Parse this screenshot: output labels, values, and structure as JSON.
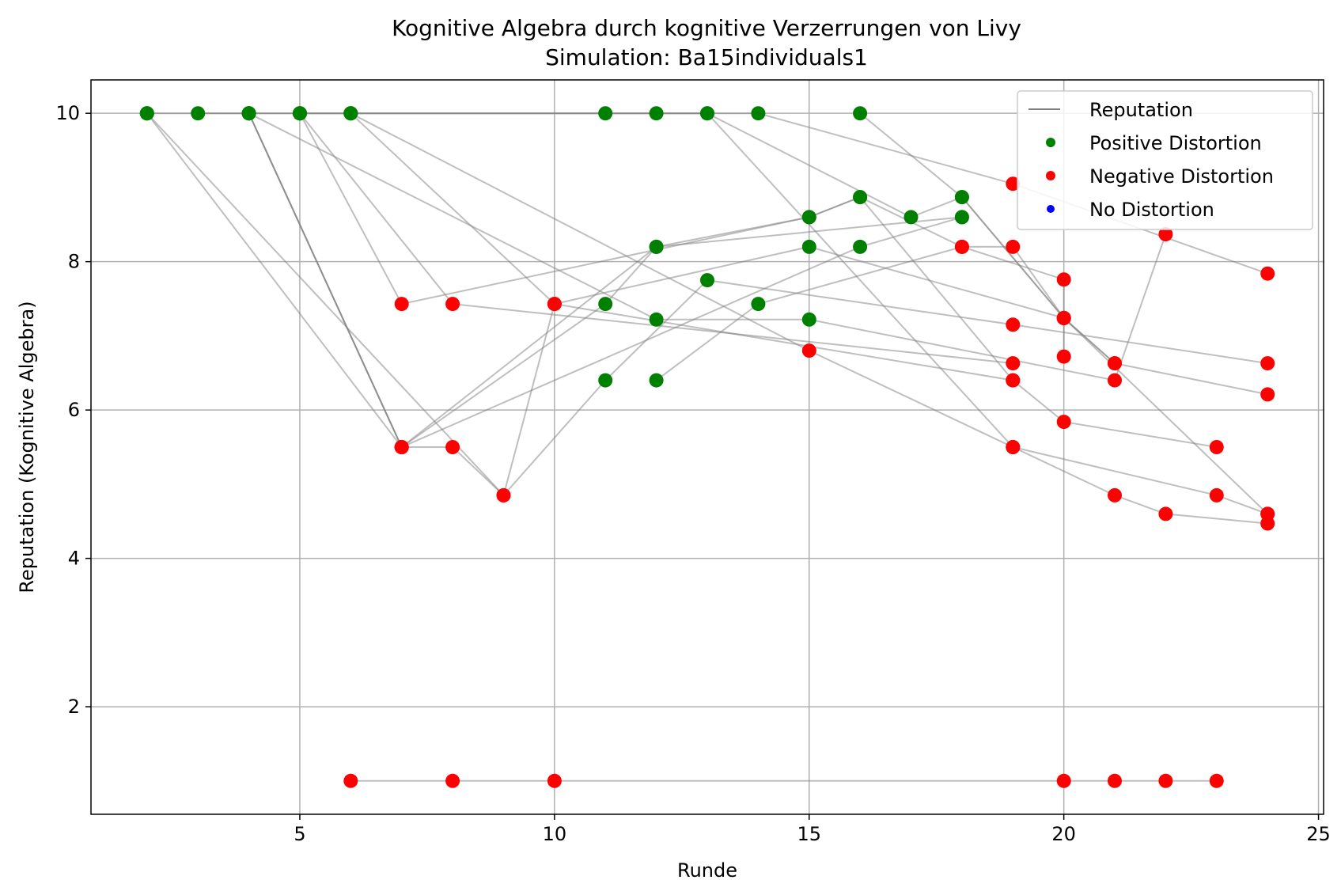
{
  "chart_data": {
    "type": "scatter",
    "title": "Kognitive Algebra durch kognitive Verzerrungen von Livy",
    "subtitle": "Simulation: Ba15individuals1",
    "xlabel": "Runde",
    "ylabel": "Reputation (Kognitive Algebra)",
    "xlim": [
      0.9,
      25.1
    ],
    "ylim": [
      0.55,
      10.45
    ],
    "xticks": [
      5,
      10,
      15,
      20,
      25
    ],
    "yticks": [
      2,
      4,
      6,
      8,
      10
    ],
    "xtick_labels": [
      "5",
      "10",
      "15",
      "20",
      "25"
    ],
    "ytick_labels": [
      "2",
      "4",
      "6",
      "8",
      "10"
    ],
    "grid": true,
    "legend_position": "top-right",
    "legend": [
      {
        "label": "Reputation",
        "marker": "line",
        "color": "#808080"
      },
      {
        "label": "Positive Distortion",
        "marker": "dot",
        "color": "#008000"
      },
      {
        "label": "Negative Distortion",
        "marker": "dot",
        "color": "#ff0000"
      },
      {
        "label": "No Distortion",
        "marker": "dot",
        "color": "#0000ff"
      }
    ],
    "colors": {
      "positive": "#008000",
      "negative": "#ff0000",
      "neutral": "#0000ff",
      "line": "#808080"
    },
    "series": [
      {
        "points": [
          [
            2,
            10,
            "P"
          ],
          [
            7,
            5.5,
            "N"
          ],
          [
            12,
            8.2,
            "P"
          ],
          [
            15,
            8.6,
            "P"
          ],
          [
            16,
            8.87,
            "P"
          ],
          [
            18,
            8.2,
            "N"
          ],
          [
            19,
            8.2,
            "N"
          ],
          [
            20,
            7.24,
            "N"
          ],
          [
            21,
            6.63,
            "N"
          ],
          [
            24,
            6.21,
            "N"
          ]
        ]
      },
      {
        "points": [
          [
            2,
            10,
            "P"
          ],
          [
            9,
            4.85,
            "N"
          ],
          [
            11,
            6.4,
            "P"
          ],
          [
            13,
            7.75,
            "P"
          ],
          [
            19,
            7.15,
            "N"
          ],
          [
            24,
            6.63,
            "N"
          ]
        ]
      },
      {
        "points": [
          [
            2,
            10,
            "P"
          ],
          [
            6,
            10,
            "P"
          ],
          [
            11,
            10,
            "P"
          ],
          [
            12,
            10,
            "P"
          ],
          [
            13,
            10,
            "P"
          ],
          [
            17,
            8.6,
            "P"
          ],
          [
            18,
            8.87,
            "P"
          ],
          [
            20,
            7.24,
            "N"
          ],
          [
            24,
            4.6,
            "N"
          ]
        ]
      },
      {
        "points": [
          [
            3,
            10,
            "P"
          ],
          [
            5,
            10,
            "P"
          ],
          [
            13,
            10,
            "P"
          ],
          [
            19,
            5.5,
            "N"
          ],
          [
            21,
            4.85,
            "N"
          ],
          [
            22,
            4.6,
            "N"
          ],
          [
            24,
            4.47,
            "N"
          ]
        ]
      },
      {
        "points": [
          [
            4,
            10,
            "P"
          ],
          [
            7,
            5.5,
            "N"
          ],
          [
            11,
            7.43,
            "P"
          ],
          [
            12,
            8.2,
            "P"
          ],
          [
            18,
            8.6,
            "P"
          ]
        ]
      },
      {
        "points": [
          [
            4,
            10,
            "P"
          ],
          [
            7,
            5.5,
            "N"
          ],
          [
            16,
            8.2,
            "P"
          ],
          [
            18,
            8.6,
            "P"
          ]
        ]
      },
      {
        "points": [
          [
            4,
            10,
            "P"
          ],
          [
            7,
            5.5,
            "N"
          ],
          [
            8,
            5.5,
            "N"
          ],
          [
            9,
            4.85,
            "N"
          ],
          [
            10,
            7.43,
            "N"
          ],
          [
            15,
            8.2,
            "P"
          ],
          [
            20,
            7.24,
            "N"
          ]
        ]
      },
      {
        "points": [
          [
            5,
            10,
            "P"
          ],
          [
            7,
            7.43,
            "N"
          ],
          [
            15,
            8.6,
            "P"
          ],
          [
            16,
            8.87,
            "P"
          ],
          [
            19,
            6.4,
            "N"
          ]
        ]
      },
      {
        "points": [
          [
            5,
            10,
            "P"
          ],
          [
            8,
            7.43,
            "N"
          ],
          [
            19,
            6.63,
            "N"
          ]
        ]
      },
      {
        "points": [
          [
            5,
            10,
            "P"
          ],
          [
            14,
            10,
            "P"
          ],
          [
            19,
            9.05,
            "N"
          ],
          [
            24,
            7.84,
            "N"
          ]
        ]
      },
      {
        "points": [
          [
            6,
            10,
            "P"
          ],
          [
            10,
            7.43,
            "N"
          ],
          [
            19,
            6.4,
            "N"
          ],
          [
            20,
            5.84,
            "N"
          ],
          [
            23,
            5.5,
            "N"
          ]
        ]
      },
      {
        "points": [
          [
            6,
            10,
            "P"
          ],
          [
            15,
            6.8,
            "N"
          ],
          [
            19,
            5.5,
            "N"
          ],
          [
            23,
            4.85,
            "N"
          ],
          [
            24,
            4.6,
            "N"
          ]
        ]
      },
      {
        "points": [
          [
            4,
            10,
            "P"
          ],
          [
            12,
            7.22,
            "P"
          ],
          [
            15,
            7.22,
            "P"
          ],
          [
            21,
            6.4,
            "N"
          ],
          [
            22,
            8.37,
            "N"
          ]
        ]
      },
      {
        "points": [
          [
            12,
            6.4,
            "P"
          ],
          [
            14,
            7.43,
            "P"
          ],
          [
            18,
            8.2,
            "N"
          ],
          [
            20,
            7.76,
            "N"
          ],
          [
            20,
            6.72,
            "N"
          ]
        ]
      },
      {
        "points": [
          [
            16,
            10,
            "P"
          ],
          [
            18,
            8.87,
            "P"
          ],
          [
            20,
            7.24,
            "N"
          ],
          [
            21,
            6.63,
            "N"
          ]
        ]
      },
      {
        "points": [
          [
            6,
            1,
            "N"
          ],
          [
            8,
            1,
            "N"
          ],
          [
            10,
            1,
            "N"
          ],
          [
            20,
            1,
            "N"
          ],
          [
            21,
            1,
            "N"
          ],
          [
            22,
            1,
            "N"
          ],
          [
            23,
            1,
            "N"
          ]
        ]
      }
    ]
  }
}
